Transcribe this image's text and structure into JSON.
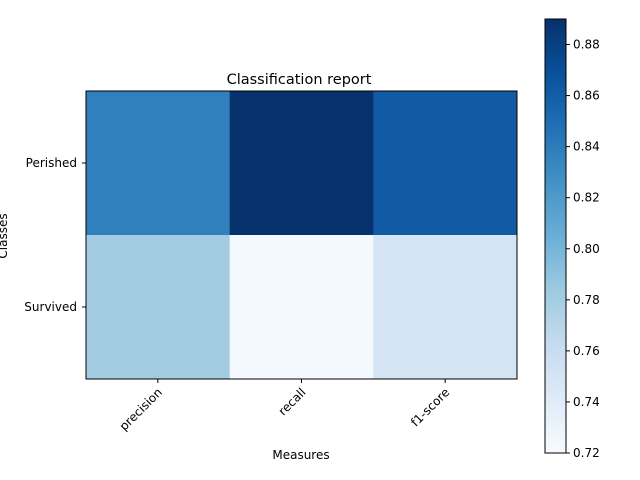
{
  "chart_data": {
    "type": "heatmap",
    "title": "Classification report",
    "xlabel": "Measures",
    "ylabel": "Classes",
    "x_categories": [
      "precision",
      "recall",
      "f1-score"
    ],
    "y_categories": [
      "Perished",
      "Survived"
    ],
    "values": [
      [
        0.838,
        0.889,
        0.862
      ],
      [
        0.781,
        0.723,
        0.75
      ]
    ],
    "colormap": "Blues",
    "colorbar": {
      "range": [
        0.72,
        0.89
      ],
      "ticks": [
        "0.72",
        "0.74",
        "0.76",
        "0.78",
        "0.80",
        "0.82",
        "0.84",
        "0.86",
        "0.88"
      ]
    },
    "grid": false,
    "legend": "colorbar-right"
  }
}
